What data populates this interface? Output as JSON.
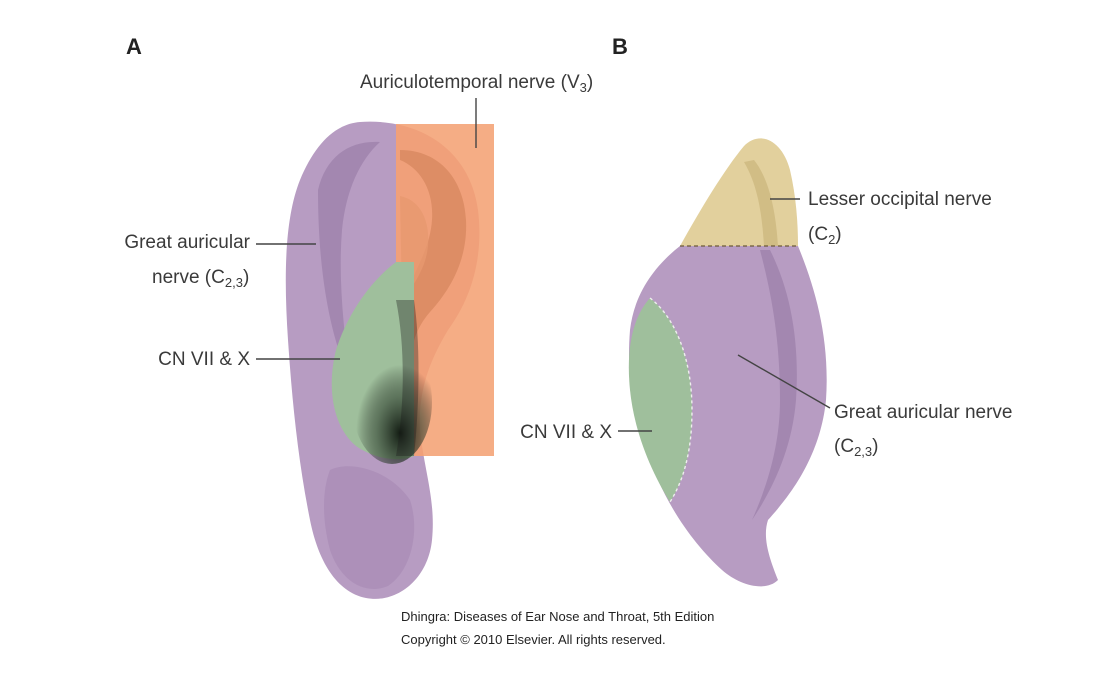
{
  "panels": {
    "a": {
      "letter": "A",
      "labels": {
        "auriculotemporal": "Auriculotemporal nerve (V",
        "auriculotemporal_sub": "3",
        "auriculotemporal_close": ")",
        "great_auricular_line1": "Great auricular",
        "great_auricular_line2": "nerve (C",
        "great_auricular_sub": "2,3",
        "great_auricular_close": ")",
        "cn": "CN VII & X"
      }
    },
    "b": {
      "letter": "B",
      "labels": {
        "lesser_occipital_line1": "Lesser occipital nerve",
        "lesser_occipital_line2": "(C",
        "lesser_occipital_sub": "2",
        "lesser_occipital_close": ")",
        "great_auricular_line1": "Great auricular nerve",
        "great_auricular_line2": "(C",
        "great_auricular_sub": "2,3",
        "great_auricular_close": ")",
        "cn": "CN VII & X"
      }
    }
  },
  "credit": {
    "line1": "Dhingra: Diseases of Ear Nose and Throat, 5th Edition",
    "line2": "Copyright © 2010 Elsevier. All rights reserved."
  },
  "colors": {
    "great_auricular": "#b79cc2",
    "auriculotemporal": "#f5ad85",
    "cn": "#9fbf9c",
    "lesser_occipital": "#e2d09d"
  }
}
